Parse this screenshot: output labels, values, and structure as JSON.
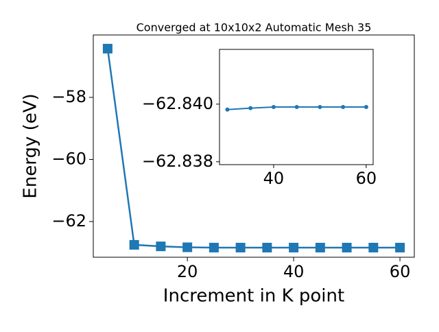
{
  "chart_data": [
    {
      "type": "line",
      "title": "Converged at 10x10x2 Automatic Mesh 35",
      "xlabel": "Increment in K point",
      "ylabel": "Energy (eV)",
      "x": [
        5,
        10,
        15,
        20,
        25,
        30,
        35,
        40,
        45,
        50,
        55,
        60
      ],
      "series": [
        {
          "name": "Energy",
          "color": "#1f77b4",
          "marker": "square",
          "values": [
            -56.43,
            -62.75,
            -62.8,
            -62.83,
            -62.84,
            -62.84,
            -62.84,
            -62.84,
            -62.84,
            -62.84,
            -62.84,
            -62.84
          ]
        }
      ],
      "xlim": [
        2.3,
        62.7
      ],
      "ylim": [
        -63.15,
        -55.99
      ],
      "xticks": [
        20,
        40,
        60
      ],
      "yticks": [
        {
          "value": -58,
          "label": "−58"
        },
        {
          "value": -60,
          "label": "−60"
        },
        {
          "value": -62,
          "label": "−62"
        }
      ]
    },
    {
      "type": "line",
      "x": [
        30,
        35,
        40,
        45,
        50,
        55,
        60
      ],
      "series": [
        {
          "name": "Energy",
          "color": "#1f77b4",
          "marker": "circle",
          "values": [
            -62.83981,
            -62.83986,
            -62.8399,
            -62.8399,
            -62.8399,
            -62.8399,
            -62.8399
          ]
        }
      ],
      "xlim": [
        28.3,
        61.5
      ],
      "ylim": [
        -62.8379,
        -62.8419
      ],
      "xticks": [
        40,
        60
      ],
      "yticks": [
        {
          "value": -62.84,
          "label": "−62.840"
        },
        {
          "value": -62.838,
          "label": "−62.838"
        }
      ]
    }
  ]
}
